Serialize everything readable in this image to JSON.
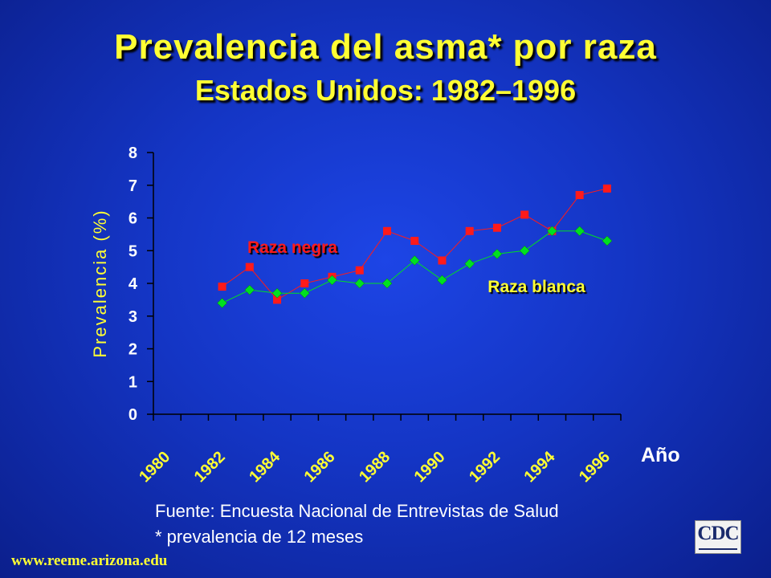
{
  "title": "Prevalencia del asma* por raza",
  "subtitle": "Estados Unidos: 1982–1996",
  "chart_data": {
    "type": "line",
    "ylabel": "Prevalencia (%)",
    "xlabel": "Año",
    "ylim": [
      0,
      8
    ],
    "yticks": [
      "0",
      "1",
      "2",
      "3",
      "4",
      "5",
      "6",
      "7",
      "8"
    ],
    "xlim": [
      1980,
      1997
    ],
    "xticks": [
      "1980",
      "1982",
      "1984",
      "1986",
      "1988",
      "1990",
      "1992",
      "1994",
      "1996"
    ],
    "grid": false,
    "series": [
      {
        "name": "Raza negra",
        "color": "#ff1a1a",
        "marker": "square",
        "x": [
          1982.5,
          1983.5,
          1984.5,
          1985.5,
          1986.5,
          1987.5,
          1988.5,
          1989.5,
          1990.5,
          1991.5,
          1992.5,
          1993.5,
          1994.5,
          1995.5,
          1996.5
        ],
        "values": [
          3.9,
          4.5,
          3.5,
          4.0,
          4.2,
          4.4,
          5.6,
          5.3,
          4.7,
          5.6,
          5.7,
          6.1,
          5.6,
          6.7,
          6.9
        ]
      },
      {
        "name": "Raza blanca",
        "color": "#00e020",
        "marker": "diamond",
        "x": [
          1982.5,
          1983.5,
          1984.5,
          1985.5,
          1986.5,
          1987.5,
          1988.5,
          1989.5,
          1990.5,
          1991.5,
          1992.5,
          1993.5,
          1994.5,
          1995.5,
          1996.5
        ],
        "values": [
          3.4,
          3.8,
          3.7,
          3.7,
          4.1,
          4.0,
          4.0,
          4.7,
          4.1,
          4.6,
          4.9,
          5.0,
          5.6,
          5.6,
          5.3
        ]
      }
    ],
    "annotations": [
      {
        "text": "Raza negra",
        "color": "#ff1a1a"
      },
      {
        "text": "Raza blanca",
        "color": "#ffff33"
      }
    ]
  },
  "footer": {
    "source": "Fuente: Encuesta Nacional de Entrevistas de Salud",
    "note": "* prevalencia de 12 meses",
    "url": "www.reeme.arizona.edu",
    "logo_text": "CDC"
  }
}
